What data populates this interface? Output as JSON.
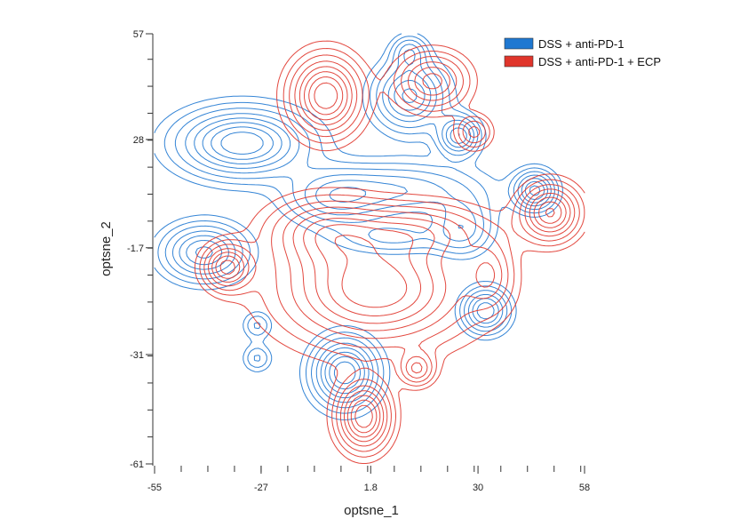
{
  "chart_data": {
    "type": "contour",
    "xlabel": "optsne_1",
    "ylabel": "optsne_2",
    "xlim": [
      -55,
      58
    ],
    "ylim": [
      -61,
      57
    ],
    "x_tick_labels": [
      "-55",
      "-27",
      "1.8",
      "30",
      "58"
    ],
    "x_tick_values": [
      -55,
      -27,
      1.8,
      30,
      58
    ],
    "y_tick_labels": [
      "57",
      "28",
      "-1.7",
      "-31",
      "-61"
    ],
    "y_tick_values": [
      57,
      28,
      -1.7,
      -31,
      -61
    ],
    "x_minor_step": 7,
    "y_minor_step": 7.4,
    "grid": false,
    "legend_position": "top-right",
    "series": [
      {
        "name": "DSS + anti-PD-1",
        "color": "#1f78d1",
        "clusters": [
          {
            "x": -32,
            "y": 27,
            "sx": 11,
            "sy": 6,
            "w": 1.0
          },
          {
            "x": -8,
            "y": 12,
            "sx": 8,
            "sy": 5,
            "w": 0.45
          },
          {
            "x": 10,
            "y": 14,
            "sx": 14,
            "sy": 5,
            "w": 0.5
          },
          {
            "x": 26,
            "y": 4,
            "sx": 5,
            "sy": 5,
            "w": 0.45
          },
          {
            "x": 8,
            "y": 1,
            "sx": 10,
            "sy": 3,
            "w": 0.3
          },
          {
            "x": 12,
            "y": 40,
            "sx": 6,
            "sy": 6,
            "w": 0.8
          },
          {
            "x": 12,
            "y": 52,
            "sx": 3,
            "sy": 3,
            "w": 0.45
          },
          {
            "x": 25,
            "y": 29,
            "sx": 3.5,
            "sy": 3.5,
            "w": 0.75
          },
          {
            "x": 45,
            "y": 14,
            "sx": 3.5,
            "sy": 3.5,
            "w": 0.8
          },
          {
            "x": -42,
            "y": -3,
            "sx": 7,
            "sy": 5,
            "w": 0.8
          },
          {
            "x": 32,
            "y": -19,
            "sx": 4,
            "sy": 4,
            "w": 0.75
          },
          {
            "x": -28,
            "y": -23,
            "sx": 2.5,
            "sy": 2.5,
            "w": 0.3
          },
          {
            "x": -28,
            "y": -32,
            "sx": 2.5,
            "sy": 2.5,
            "w": 0.3
          },
          {
            "x": -5,
            "y": -36,
            "sx": 5.5,
            "sy": 6,
            "w": 1.0
          }
        ]
      },
      {
        "name": "DSS + anti-PD-1 + ECP",
        "color": "#e0352b",
        "clusters": [
          {
            "x": -10,
            "y": 40,
            "sx": 6,
            "sy": 7,
            "w": 1.0
          },
          {
            "x": 18,
            "y": 44,
            "sx": 6,
            "sy": 5,
            "w": 0.7
          },
          {
            "x": 29,
            "y": 30,
            "sx": 3,
            "sy": 3,
            "w": 0.45
          },
          {
            "x": 49,
            "y": 8,
            "sx": 5,
            "sy": 5,
            "w": 0.9
          },
          {
            "x": -36,
            "y": -7,
            "sx": 4,
            "sy": 4,
            "w": 0.8
          },
          {
            "x": 3,
            "y": -13,
            "sx": 16,
            "sy": 10,
            "w": 1.0
          },
          {
            "x": -10,
            "y": 3,
            "sx": 10,
            "sy": 6,
            "w": 0.55
          },
          {
            "x": 15,
            "y": 3,
            "sx": 12,
            "sy": 5,
            "w": 0.45
          },
          {
            "x": 33,
            "y": -9,
            "sx": 4,
            "sy": 6,
            "w": 0.4
          },
          {
            "x": 14,
            "y": -35,
            "sx": 3,
            "sy": 3,
            "w": 0.5
          },
          {
            "x": 0,
            "y": -48,
            "sx": 4.5,
            "sy": 6,
            "w": 1.0
          }
        ]
      }
    ],
    "contour_levels": [
      0.1,
      0.18,
      0.28,
      0.4,
      0.52,
      0.64,
      0.76,
      0.88
    ]
  }
}
